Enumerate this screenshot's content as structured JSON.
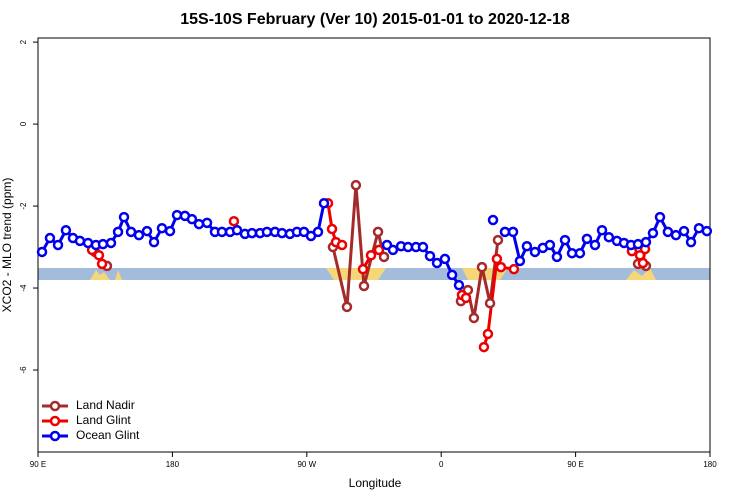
{
  "chart_data": {
    "type": "line",
    "title": "15S-10S February (Ver 10)   2015-01-01 to 2020-12-18",
    "xlabel": "Longitude",
    "ylabel": "XCO2 - MLO trend (ppm)",
    "xlim": [
      90,
      540
    ],
    "ylim": [
      -8,
      2.1
    ],
    "xticks": [
      {
        "value": 90,
        "label": "90 E"
      },
      180,
      {
        "value": 270,
        "label": "90 W"
      },
      {
        "value": 360,
        "label": "0"
      },
      {
        "value": 450,
        "label": "90 E"
      },
      {
        "value": 540,
        "label": "180"
      }
    ],
    "yticks": [
      2,
      0,
      -2,
      -4,
      -6
    ],
    "legend": "bottom-left",
    "series": [
      {
        "name": "Land Nadir",
        "color": "#a52a2a",
        "x": [
          128.2,
          136.2,
          null,
          287.5,
          296.9,
          302.9,
          308.3,
          317.7,
          321.7,
          null,
          373.2,
          377.9,
          381.9,
          387.3,
          392.7,
          398.0,
          null,
          491.8,
          497.1
        ],
        "values": [
          -3.12,
          -3.46,
          null,
          -3.0,
          -4.46,
          -1.49,
          -3.95,
          -2.63,
          -3.24,
          null,
          -4.32,
          -4.05,
          -4.73,
          -3.49,
          -4.37,
          -2.83,
          null,
          -3.41,
          -3.46
        ]
      },
      {
        "name": "Land Glint",
        "color": "#ee0000",
        "x": [
          126.2,
          130.8,
          132.9,
          null,
          221.2,
          null,
          284.2,
          286.9,
          289.5,
          293.6,
          null,
          307.6,
          313.0,
          318.3,
          null,
          373.9,
          376.6,
          null,
          388.6,
          391.3,
          397.3,
          400.0,
          408.7,
          null,
          487.7,
          493.1,
          495.1,
          496.5
        ],
        "values": [
          -3.07,
          -3.2,
          -3.41,
          null,
          -2.37,
          null,
          -1.93,
          -2.56,
          -2.88,
          -2.95,
          null,
          -3.54,
          -3.2,
          -3.07,
          null,
          -4.17,
          -4.24,
          null,
          -5.44,
          -5.12,
          -3.29,
          -3.49,
          -3.54,
          null,
          -3.1,
          -3.2,
          -3.39,
          -3.05
        ]
      },
      {
        "name": "Ocean Glint",
        "color": "#0000ee",
        "x": [
          92.7,
          98.0,
          103.4,
          108.7,
          113.4,
          118.1,
          123.5,
          128.8,
          133.5,
          138.9,
          143.6,
          147.6,
          152.3,
          157.6,
          163.0,
          167.7,
          173.0,
          178.4,
          183.1,
          188.4,
          193.1,
          197.8,
          203.2,
          208.5,
          213.2,
          218.6,
          223.3,
          228.6,
          233.3,
          238.7,
          243.3,
          248.7,
          253.4,
          258.7,
          263.4,
          268.1,
          272.8,
          277.5,
          281.5,
          null,
          323.7,
          327.7,
          333.1,
          337.8,
          343.1,
          347.8,
          352.5,
          357.2,
          362.5,
          367.3,
          371.9,
          null,
          394.7,
          null,
          402.7,
          408.1,
          412.7,
          417.4,
          422.8,
          428.1,
          432.8,
          437.5,
          442.9,
          447.6,
          452.9,
          457.6,
          463.0,
          467.7,
          472.3,
          477.7,
          482.4,
          487.1,
          491.8,
          497.1,
          501.8,
          506.5,
          511.8,
          517.2,
          522.6,
          527.3,
          532.6,
          537.9
        ],
        "values": [
          -3.12,
          -2.78,
          -2.95,
          -2.59,
          -2.78,
          -2.85,
          -2.9,
          -2.95,
          -2.93,
          -2.9,
          -2.63,
          -2.27,
          -2.63,
          -2.71,
          -2.61,
          -2.88,
          -2.54,
          -2.61,
          -2.22,
          -2.24,
          -2.32,
          -2.44,
          -2.41,
          -2.63,
          -2.63,
          -2.63,
          -2.59,
          -2.68,
          -2.66,
          -2.66,
          -2.63,
          -2.63,
          -2.66,
          -2.68,
          -2.63,
          -2.63,
          -2.73,
          -2.63,
          -1.93,
          null,
          -2.95,
          -3.07,
          -2.98,
          -3.0,
          -3.0,
          -3.0,
          -3.22,
          -3.39,
          -3.29,
          -3.68,
          -3.93,
          null,
          -2.34,
          null,
          -2.63,
          -2.63,
          -3.34,
          -2.98,
          -3.12,
          -3.02,
          -2.95,
          -3.24,
          -2.83,
          -3.15,
          -3.15,
          -2.8,
          -2.95,
          -2.59,
          -2.76,
          -2.85,
          -2.9,
          -2.95,
          -2.93,
          -2.88,
          -2.66,
          -2.27,
          -2.63,
          -2.71,
          -2.61,
          -2.88,
          -2.54,
          -2.61
        ]
      }
    ]
  }
}
